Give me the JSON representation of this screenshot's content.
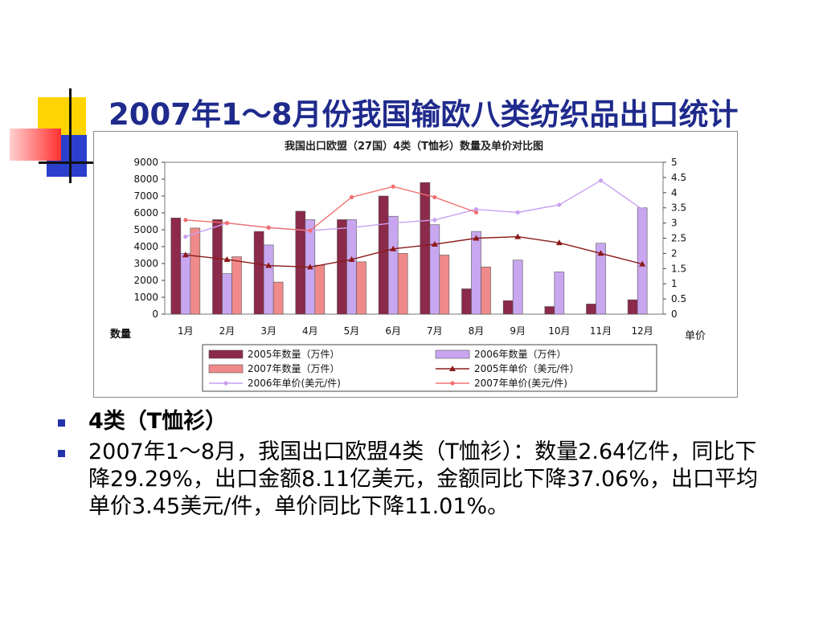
{
  "slide": {
    "title": "2007年1～8月份我国输欧八类纺织品出口统计",
    "bullets": [
      "4类（T恤衫）",
      "2007年1～8月，我国出口欧盟4类（T恤衫）：数量2.64亿件，同比下降29.29%，出口金额8.11亿美元，金额同比下降37.06%，出口平均单价3.45美元/件，单价同比下降11.01%。"
    ]
  },
  "colors": {
    "title": "#1f2a8c",
    "bar2005": "#8b2a4a",
    "bar2006": "#c9a6f0",
    "bar2007": "#f08a8a",
    "line2005": "#8b1a1a",
    "line2006": "#c9a0f0",
    "line2007": "#f07070",
    "deco_yellow": "#ffd400",
    "deco_blue": "#2b3fcc",
    "deco_red": "#ff3030"
  },
  "chart_data": {
    "type": "bar",
    "title": "我国出口欧盟（27国）4类（T恤衫）数量及单价对比图",
    "ylabel": "数量",
    "y2label": "单价",
    "categories": [
      "1月",
      "2月",
      "3月",
      "4月",
      "5月",
      "6月",
      "7月",
      "8月",
      "9月",
      "10月",
      "11月",
      "12月"
    ],
    "ylim": [
      0,
      9000
    ],
    "yticks": [
      0,
      1000,
      2000,
      3000,
      4000,
      5000,
      6000,
      7000,
      8000,
      9000
    ],
    "y2lim": [
      0,
      5
    ],
    "y2ticks": [
      "0",
      "0.5",
      "1",
      "1.5",
      "2",
      "2.5",
      "3",
      "3.5",
      "4",
      "4.5",
      "5"
    ],
    "series": [
      {
        "name": "2005年数量（万件）",
        "kind": "bar",
        "values": [
          5700,
          5600,
          4900,
          6100,
          5600,
          7000,
          7800,
          1500,
          800,
          450,
          600,
          850
        ]
      },
      {
        "name": "2006年数量（万件）",
        "kind": "bar",
        "values": [
          3600,
          2400,
          4100,
          5600,
          5600,
          5800,
          5300,
          4900,
          3200,
          2500,
          4200,
          6300
        ]
      },
      {
        "name": "2007年数量（万件）",
        "kind": "bar",
        "values": [
          5100,
          3400,
          1900,
          2900,
          3100,
          3600,
          3500,
          2800,
          null,
          null,
          null,
          null
        ]
      },
      {
        "name": "2005年单价（美元/件）",
        "kind": "line",
        "values": [
          1.95,
          1.8,
          1.6,
          1.55,
          1.8,
          2.15,
          2.3,
          2.5,
          2.55,
          2.35,
          2.0,
          1.65
        ]
      },
      {
        "name": "2006年单价(美元/件)",
        "kind": "line",
        "values": [
          2.55,
          3.0,
          2.85,
          2.75,
          2.85,
          3.0,
          3.1,
          3.45,
          3.35,
          3.6,
          4.4,
          3.45
        ]
      },
      {
        "name": "2007年单价(美元/件)",
        "kind": "line",
        "values": [
          3.1,
          3.0,
          2.85,
          2.75,
          3.85,
          4.2,
          3.85,
          3.35,
          null,
          null,
          null,
          null
        ]
      }
    ],
    "legend_position": "bottom"
  }
}
